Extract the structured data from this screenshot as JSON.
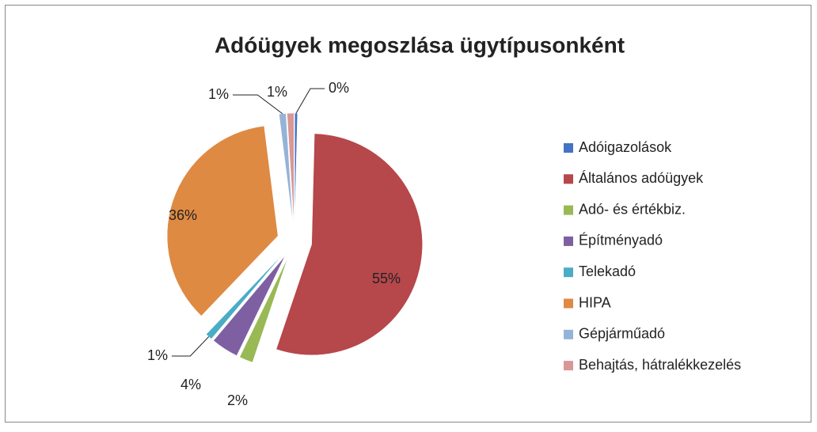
{
  "chart_data": {
    "type": "pie",
    "title": "Adóügyek megoszlása ügytípusonként",
    "categories": [
      "Adóigazolások",
      "Általános adóügyek",
      "Adó- és értékbiz.",
      "Építményadó",
      "Telekadó",
      "HIPA",
      "Gépjárműadó",
      "Behajtás, hátralékkezelés"
    ],
    "values": [
      0.4,
      55,
      2,
      4,
      1,
      36,
      1,
      1
    ],
    "value_labels": [
      "0%",
      "55%",
      "2%",
      "4%",
      "1%",
      "36%",
      "1%",
      "1%"
    ],
    "colors": [
      "#4472c4",
      "#b6474a",
      "#98b954",
      "#7e60a2",
      "#4bacc6",
      "#de8a43",
      "#95b3d7",
      "#d99795"
    ],
    "legend": "right"
  }
}
